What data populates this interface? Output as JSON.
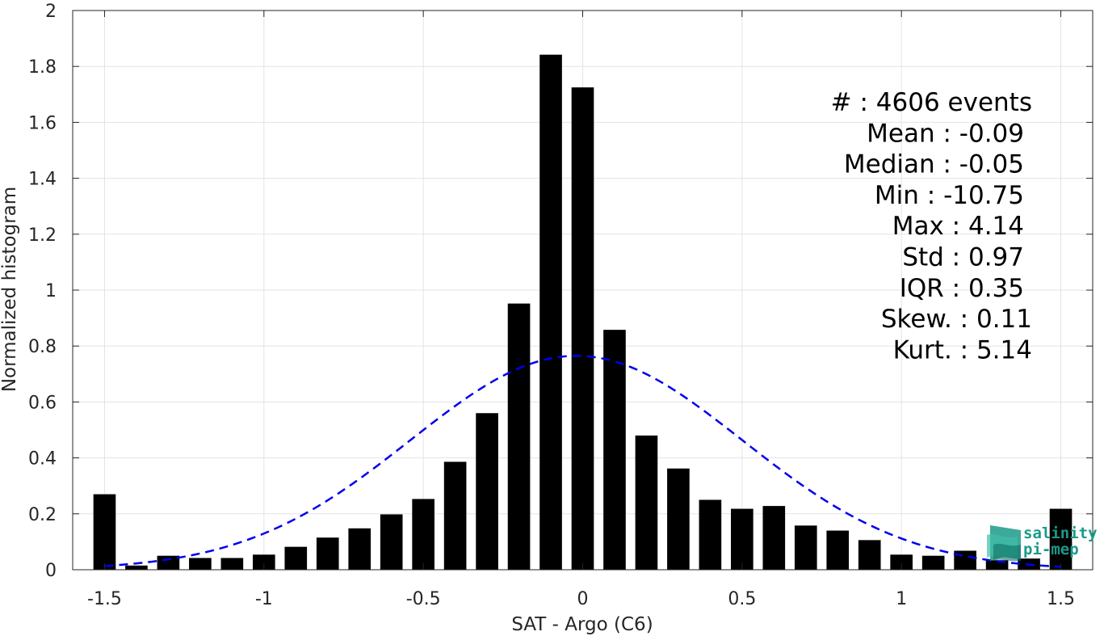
{
  "chart_data": {
    "type": "bar",
    "xlabel": "SAT - Argo (C6)",
    "ylabel": "Normalized histogram",
    "xlim": [
      -1.6,
      1.6
    ],
    "ylim": [
      0,
      2
    ],
    "x_ticks": [
      -1.5,
      -1,
      -0.5,
      0,
      0.5,
      1,
      1.5
    ],
    "x_tick_labels": [
      "-1.5",
      "-1",
      "-0.5",
      "0",
      "0.5",
      "1",
      "1.5"
    ],
    "y_ticks": [
      0,
      0.2,
      0.4,
      0.6,
      0.8,
      1,
      1.2,
      1.4,
      1.6,
      1.8,
      2
    ],
    "y_tick_labels": [
      "0",
      "0.2",
      "0.4",
      "0.6",
      "0.8",
      "1",
      "1.2",
      "1.4",
      "1.6",
      "1.8",
      "2"
    ],
    "grid": true,
    "bar_color": "#000000",
    "bin_width": 0.1,
    "series": [
      {
        "x": [
          -1.5,
          -1.4,
          -1.3,
          -1.2,
          -1.1,
          -1.0,
          -0.9,
          -0.8,
          -0.7,
          -0.6,
          -0.5,
          -0.4,
          -0.3,
          -0.2,
          -0.1,
          0.0,
          0.1,
          0.2,
          0.3,
          0.4,
          0.5,
          0.6,
          0.7,
          0.8,
          0.9,
          1.0,
          1.1,
          1.2,
          1.3,
          1.4,
          1.5
        ],
        "values": [
          0.27,
          0.015,
          0.05,
          0.042,
          0.042,
          0.054,
          0.082,
          0.115,
          0.148,
          0.198,
          0.253,
          0.386,
          0.56,
          0.952,
          1.842,
          1.725,
          0.858,
          0.48,
          0.362,
          0.25,
          0.218,
          0.228,
          0.158,
          0.14,
          0.106,
          0.054,
          0.05,
          0.068,
          0.034,
          0.04,
          0.218
        ]
      }
    ],
    "fit_curve": {
      "style": "dashed",
      "color": "#0000ee",
      "mean": -0.02,
      "std": 0.52,
      "peak": 0.765,
      "x_range": [
        -1.5,
        1.5
      ]
    },
    "stats_lines": [
      "#  : 4606 events",
      "Mean : -0.09",
      "Median : -0.05",
      "Min : -10.75",
      "Max : 4.14",
      "Std : 0.97",
      "IQR : 0.35",
      "Skew. : 0.11",
      "Kurt. : 5.14"
    ]
  },
  "logo": {
    "line1": "salinity",
    "line2": "pi-mep",
    "icon": "wave-flag-icon",
    "color": "#1a9a8a"
  }
}
